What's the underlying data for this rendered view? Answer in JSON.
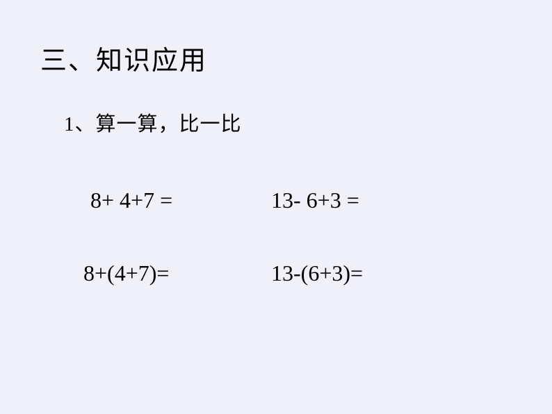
{
  "background_color": "#f0f0fa",
  "text_color": "#000000",
  "section": {
    "heading": "三、知识应用",
    "heading_fontsize": 38
  },
  "subsection": {
    "heading": "1、算一算，比一比",
    "heading_fontsize": 29
  },
  "equations": {
    "fontsize": 32,
    "font_family": "Times New Roman",
    "row1": {
      "left": "8+ 4+7 =",
      "right": "13- 6+3 ="
    },
    "row2": {
      "left": "8+(4+7)=",
      "right": "13-(6+3)="
    }
  }
}
